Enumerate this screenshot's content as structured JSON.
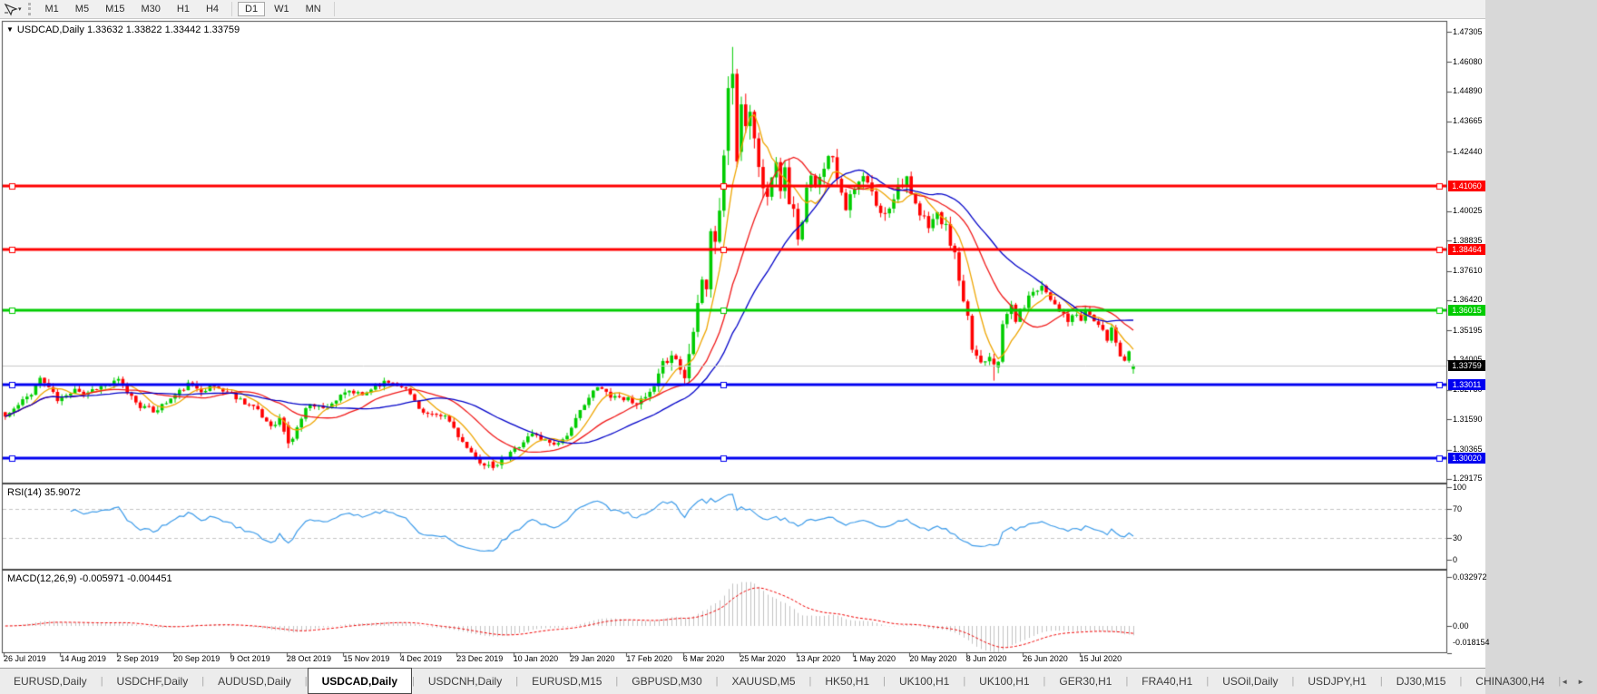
{
  "toolbar": {
    "dropdown_glyph": "▾",
    "timeframes": [
      "M1",
      "M5",
      "M15",
      "M30",
      "H1",
      "H4",
      "D1",
      "W1",
      "MN"
    ],
    "active_timeframe": "D1"
  },
  "chart": {
    "collapse_glyph": "▼",
    "symbol_label": "USDCAD,Daily",
    "ohlc_values": "1.33632 1.33822 1.33442 1.33759",
    "open": "1.33632",
    "high": "1.33822",
    "low": "1.33442",
    "close": "1.33759"
  },
  "price_axis": {
    "ticks": [
      "1.47305",
      "1.46080",
      "1.44890",
      "1.43665",
      "1.42440",
      "1.40025",
      "1.38835",
      "1.37610",
      "1.36420",
      "1.35195",
      "1.34005",
      "1.32780",
      "1.31590",
      "1.30365",
      "1.29175"
    ],
    "current_price": {
      "label": "1.33759",
      "value": 1.33759,
      "bg": "#000000"
    }
  },
  "hlines": [
    {
      "label": "1.41060",
      "value": 1.4106,
      "color": "#ff0000",
      "thickness": 3
    },
    {
      "label": "1.38464",
      "value": 1.38464,
      "color": "#ff0000",
      "thickness": 3
    },
    {
      "label": "1.36015",
      "value": 1.36015,
      "color": "#00cc00",
      "thickness": 3
    },
    {
      "label": "1.33011",
      "value": 1.33011,
      "color": "#0000f0",
      "thickness": 3
    },
    {
      "label": "1.30020",
      "value": 1.3002,
      "color": "#0000f0",
      "thickness": 3
    }
  ],
  "current_line_color": "#c8c8c8",
  "rsi_panel": {
    "label": "RSI(14) 35.9072",
    "value": "35.9072",
    "line_color": "#3d9be9",
    "levels": [
      {
        "label": "100",
        "value": 100,
        "dashed": false
      },
      {
        "label": "70",
        "value": 70,
        "dashed": true
      },
      {
        "label": "30",
        "value": 30,
        "dashed": true
      },
      {
        "label": "0",
        "value": 0,
        "dashed": false
      }
    ]
  },
  "macd_panel": {
    "label": "MACD(12,26,9) -0.005971 -0.004451",
    "values": "-0.005971 -0.004451",
    "hist_color": "#c2c2c2",
    "signal_color": "#f00000",
    "axis": [
      {
        "label": "0.032972",
        "value": 0.032972
      },
      {
        "label": "0.00",
        "value": 0
      },
      {
        "label": "-0.018154",
        "value": -0.018154
      }
    ]
  },
  "date_axis": [
    "26 Jul 2019",
    "14 Aug 2019",
    "2 Sep 2019",
    "20 Sep 2019",
    "9 Oct 2019",
    "28 Oct 2019",
    "15 Nov 2019",
    "4 Dec 2019",
    "23 Dec 2019",
    "10 Jan 2020",
    "29 Jan 2020",
    "17 Feb 2020",
    "6 Mar 2020",
    "25 Mar 2020",
    "13 Apr 2020",
    "1 May 2020",
    "20 May 2020",
    "8 Jun 2020",
    "26 Jun 2020",
    "15 Jul 2020"
  ],
  "tabs": {
    "scroll_left": "◄",
    "scroll_right": "►",
    "items": [
      {
        "label": "EURUSD,Daily",
        "active": false
      },
      {
        "label": "USDCHF,Daily",
        "active": false
      },
      {
        "label": "AUDUSD,Daily",
        "active": false
      },
      {
        "label": "USDCAD,Daily",
        "active": true
      },
      {
        "label": "USDCNH,Daily",
        "active": false
      },
      {
        "label": "EURUSD,M15",
        "active": false
      },
      {
        "label": "GBPUSD,M30",
        "active": false
      },
      {
        "label": "XAUUSD,M5",
        "active": false
      },
      {
        "label": "HK50,H1",
        "active": false
      },
      {
        "label": "UK100,H1",
        "active": false
      },
      {
        "label": "UK100,H1",
        "active": false
      },
      {
        "label": "GER30,H1",
        "active": false
      },
      {
        "label": "FRA40,H1",
        "active": false
      },
      {
        "label": "USOil,Daily",
        "active": false
      },
      {
        "label": "USDJPY,H1",
        "active": false
      },
      {
        "label": "DJ30,M15",
        "active": false
      },
      {
        "label": "CHINA300,H4",
        "active": false
      }
    ]
  },
  "chart_data": {
    "type": "candlestick",
    "symbol": "USDCAD",
    "timeframe": "Daily",
    "bars": 260,
    "seed": 11,
    "ylim": [
      1.29175,
      1.47305
    ],
    "x_ticks_every_bars": 13,
    "up_color": "#00cc00",
    "down_color": "#ff0000",
    "last_bar": {
      "open": 1.33632,
      "high": 1.33822,
      "low": 1.33442,
      "close": 1.33759
    },
    "close_keypoints": [
      [
        0,
        1.317
      ],
      [
        3,
        1.3215
      ],
      [
        6,
        1.3268
      ],
      [
        8,
        1.3325
      ],
      [
        10,
        1.329
      ],
      [
        12,
        1.3235
      ],
      [
        14,
        1.3252
      ],
      [
        16,
        1.329
      ],
      [
        18,
        1.3262
      ],
      [
        21,
        1.3288
      ],
      [
        24,
        1.33
      ],
      [
        26,
        1.3316
      ],
      [
        28,
        1.327
      ],
      [
        31,
        1.3215
      ],
      [
        34,
        1.3192
      ],
      [
        37,
        1.3228
      ],
      [
        39,
        1.3256
      ],
      [
        42,
        1.33
      ],
      [
        45,
        1.328
      ],
      [
        48,
        1.3292
      ],
      [
        51,
        1.327
      ],
      [
        54,
        1.324
      ],
      [
        57,
        1.321
      ],
      [
        59,
        1.3168
      ],
      [
        61,
        1.3135
      ],
      [
        63,
        1.316
      ],
      [
        65,
        1.3062
      ],
      [
        66,
        1.3085
      ],
      [
        68,
        1.3165
      ],
      [
        70,
        1.3228
      ],
      [
        73,
        1.3202
      ],
      [
        76,
        1.3238
      ],
      [
        79,
        1.3272
      ],
      [
        82,
        1.3255
      ],
      [
        85,
        1.3298
      ],
      [
        88,
        1.3312
      ],
      [
        91,
        1.3298
      ],
      [
        93,
        1.326
      ],
      [
        96,
        1.3185
      ],
      [
        99,
        1.3168
      ],
      [
        101,
        1.3172
      ],
      [
        103,
        1.3125
      ],
      [
        105,
        1.3065
      ],
      [
        107,
        1.3015
      ],
      [
        109,
        1.2988
      ],
      [
        112,
        1.2962
      ],
      [
        114,
        1.2992
      ],
      [
        116,
        1.3022
      ],
      [
        118,
        1.3055
      ],
      [
        121,
        1.3102
      ],
      [
        124,
        1.3072
      ],
      [
        127,
        1.3062
      ],
      [
        130,
        1.3118
      ],
      [
        133,
        1.3228
      ],
      [
        136,
        1.3288
      ],
      [
        139,
        1.3258
      ],
      [
        142,
        1.3245
      ],
      [
        146,
        1.3228
      ],
      [
        149,
        1.3282
      ],
      [
        151,
        1.3378
      ],
      [
        153,
        1.3432
      ],
      [
        155,
        1.3365
      ],
      [
        156,
        1.333
      ],
      [
        157,
        1.3422
      ],
      [
        159,
        1.3658
      ],
      [
        160,
        1.3728
      ],
      [
        161,
        1.3702
      ],
      [
        162,
        1.3928
      ],
      [
        163,
        1.3862
      ],
      [
        164,
        1.4012
      ],
      [
        165,
        1.4242
      ],
      [
        166,
        1.4502
      ],
      [
        167,
        1.456
      ],
      [
        168,
        1.4205
      ],
      [
        169,
        1.4452
      ],
      [
        170,
        1.4352
      ],
      [
        171,
        1.4425
      ],
      [
        172,
        1.4285
      ],
      [
        173,
        1.4195
      ],
      [
        174,
        1.4092
      ],
      [
        175,
        1.4052
      ],
      [
        176,
        1.4172
      ],
      [
        177,
        1.4225
      ],
      [
        178,
        1.4105
      ],
      [
        179,
        1.4162
      ],
      [
        180,
        1.4052
      ],
      [
        181,
        1.3995
      ],
      [
        182,
        1.3905
      ],
      [
        183,
        1.3952
      ],
      [
        184,
        1.4082
      ],
      [
        185,
        1.4135
      ],
      [
        186,
        1.4085
      ],
      [
        187,
        1.4162
      ],
      [
        188,
        1.4195
      ],
      [
        190,
        1.4235
      ],
      [
        191,
        1.4152
      ],
      [
        192,
        1.4085
      ],
      [
        193,
        1.4025
      ],
      [
        195,
        1.4085
      ],
      [
        197,
        1.4142
      ],
      [
        199,
        1.4075
      ],
      [
        201,
        1.3985
      ],
      [
        203,
        1.4025
      ],
      [
        205,
        1.4105
      ],
      [
        207,
        1.4142
      ],
      [
        208,
        1.4055
      ],
      [
        210,
        1.3985
      ],
      [
        212,
        1.3952
      ],
      [
        214,
        1.3988
      ],
      [
        216,
        1.3932
      ],
      [
        218,
        1.3822
      ],
      [
        219,
        1.3722
      ],
      [
        220,
        1.3622
      ],
      [
        221,
        1.3562
      ],
      [
        222,
        1.3445
      ],
      [
        224,
        1.3392
      ],
      [
        226,
        1.3422
      ],
      [
        227,
        1.3382
      ],
      [
        228,
        1.3405
      ],
      [
        229,
        1.3532
      ],
      [
        230,
        1.3585
      ],
      [
        231,
        1.3622
      ],
      [
        232,
        1.3562
      ],
      [
        233,
        1.3595
      ],
      [
        234,
        1.3622
      ],
      [
        236,
        1.3682
      ],
      [
        238,
        1.3702
      ],
      [
        240,
        1.3652
      ],
      [
        242,
        1.3605
      ],
      [
        244,
        1.3552
      ],
      [
        245,
        1.3582
      ],
      [
        247,
        1.3562
      ],
      [
        248,
        1.3602
      ],
      [
        249,
        1.3582
      ],
      [
        251,
        1.3542
      ],
      [
        252,
        1.3512
      ],
      [
        253,
        1.3482
      ],
      [
        254,
        1.3532
      ],
      [
        255,
        1.3472
      ],
      [
        256,
        1.3422
      ],
      [
        257,
        1.3402
      ],
      [
        258,
        1.3432
      ],
      [
        259,
        1.33759
      ]
    ],
    "volatility_keypoints": [
      [
        0,
        0.005
      ],
      [
        60,
        0.0052
      ],
      [
        100,
        0.0045
      ],
      [
        140,
        0.005
      ],
      [
        152,
        0.0085
      ],
      [
        158,
        0.013
      ],
      [
        166,
        0.019
      ],
      [
        174,
        0.015
      ],
      [
        182,
        0.012
      ],
      [
        192,
        0.01
      ],
      [
        205,
        0.0085
      ],
      [
        215,
        0.009
      ],
      [
        225,
        0.007
      ],
      [
        240,
        0.0055
      ],
      [
        259,
        0.0045
      ]
    ],
    "overrides": {
      "65": [
        1.3135,
        1.315,
        1.3042,
        1.3062
      ],
      "112": [
        1.2988,
        1.3005,
        1.2952,
        1.2962
      ],
      "166": [
        1.4248,
        1.455,
        1.419,
        1.4502
      ],
      "167": [
        1.4502,
        1.4669,
        1.4435,
        1.456
      ],
      "168": [
        1.456,
        1.458,
        1.4182,
        1.4205
      ],
      "227": [
        1.3405,
        1.3425,
        1.3316,
        1.3382
      ],
      "259": [
        1.33632,
        1.33822,
        1.33442,
        1.33759
      ]
    },
    "moving_averages": [
      {
        "period": 7,
        "color": "#eea500"
      },
      {
        "period": 18,
        "color": "#f01818"
      },
      {
        "period": 32,
        "color": "#0000c8"
      }
    ],
    "indicators": {
      "rsi_period": 14,
      "macd": [
        12,
        26,
        9
      ]
    }
  }
}
